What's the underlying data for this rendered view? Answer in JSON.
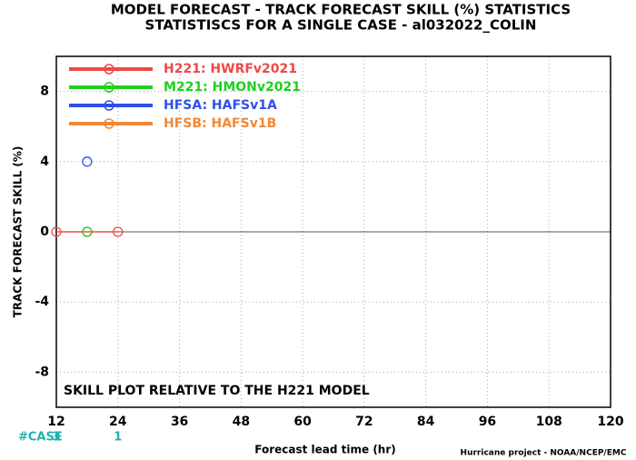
{
  "chart_data": {
    "type": "line",
    "title": "MODEL FORECAST - TRACK FORECAST SKILL (%) STATISTICS",
    "subtitle": "STATISTISCS FOR A SINGLE CASE - al032022_COLIN",
    "annotation": "SKILL PLOT RELATIVE TO THE H221 MODEL",
    "footer": "Hurricane project - NOAA/NCEP/EMC",
    "x_label": "Forecast lead time (hr)",
    "y_label": "TRACK FORECAST SKILL (%)",
    "x": [
      12,
      18,
      24
    ],
    "series": [
      {
        "name": "H221: HWRFv2021",
        "color": "#f04848",
        "values": [
          0,
          0,
          0
        ]
      },
      {
        "name": "M221: HMONv2021",
        "color": "#20d020",
        "values": [
          null,
          0,
          null
        ]
      },
      {
        "name": "HFSA: HAFSv1A",
        "color": "#3050e8",
        "values": [
          null,
          4,
          null
        ]
      },
      {
        "name": "HFSB: HAFSv1B",
        "color": "#f08838",
        "values": [
          null,
          null,
          null
        ]
      }
    ],
    "cases": {
      "label": "#CASE",
      "values": [
        3,
        null,
        1
      ]
    },
    "xlim": [
      12,
      120
    ],
    "xticks": [
      12,
      24,
      36,
      48,
      60,
      72,
      84,
      96,
      108,
      120
    ],
    "ylim": [
      -10,
      10
    ],
    "yticks": [
      -8,
      -4,
      0,
      4,
      8
    ],
    "grid": true
  }
}
